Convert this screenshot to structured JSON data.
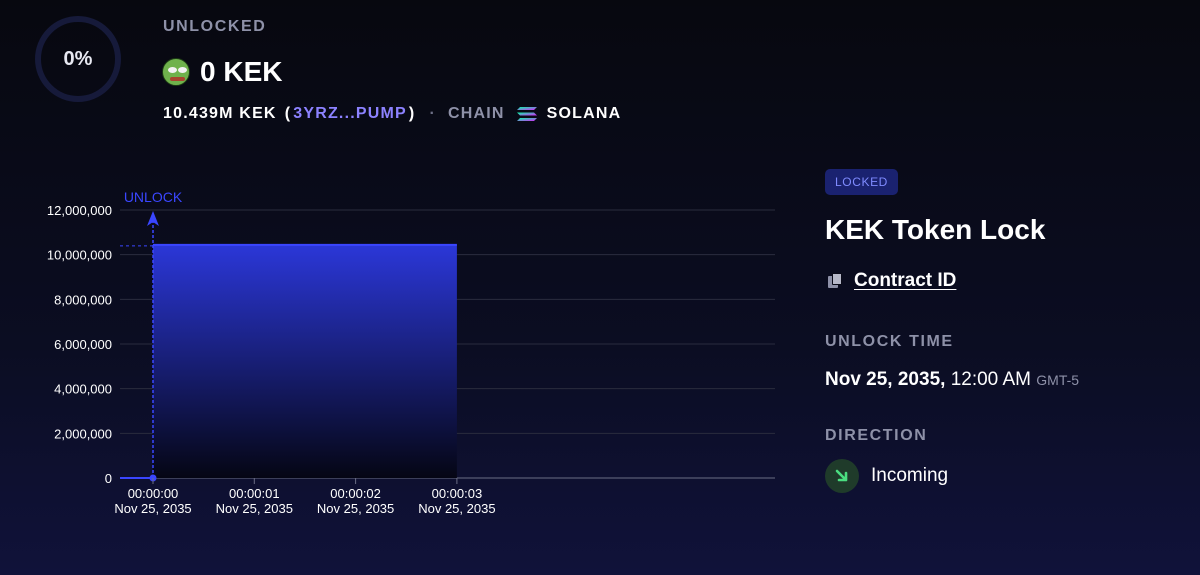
{
  "progress": {
    "label": "0%",
    "fraction": 0
  },
  "header": {
    "unlocked_label": "UNLOCKED",
    "amount": "0 KEK",
    "total": "10.439M KEK",
    "open_paren": "(",
    "address": "3YRZ...PUMP",
    "close_paren": ")",
    "separator": "·",
    "chain_label": "CHAIN",
    "chain_name": "SOLANA",
    "token_icon": "pepe-token-avatar",
    "chain_icon": "solana-icon"
  },
  "chart_data": {
    "type": "area",
    "series": [
      {
        "x": [
          "00:00:00",
          "00:00:00",
          "00:00:03"
        ],
        "values": [
          0,
          10439000,
          10439000
        ]
      }
    ],
    "annotation": "UNLOCK",
    "y_ticks": [
      "12,000,000",
      "10,000,000",
      "8,000,000",
      "6,000,000",
      "4,000,000",
      "2,000,000",
      "0"
    ],
    "y_tick_values": [
      12000000,
      10000000,
      8000000,
      6000000,
      4000000,
      2000000,
      0
    ],
    "x_ticks": [
      {
        "time": "00:00:00",
        "date": "Nov 25, 2035"
      },
      {
        "time": "00:00:01",
        "date": "Nov 25, 2035"
      },
      {
        "time": "00:00:02",
        "date": "Nov 25, 2035"
      },
      {
        "time": "00:00:03",
        "date": "Nov 25, 2035"
      }
    ],
    "ylim": [
      0,
      12000000
    ],
    "grid": true,
    "colors": {
      "fill_top": "#2b37d8",
      "fill_bottom": "#050614",
      "line": "#3a46ff",
      "grid": "#2a2c3e"
    }
  },
  "panel": {
    "badge": "LOCKED",
    "title": "KEK Token Lock",
    "contract_link": "Contract ID",
    "unlock_time_label": "UNLOCK TIME",
    "unlock_date": "Nov 25, 2035,",
    "unlock_clock": "12:00 AM",
    "unlock_tz": "GMT-5",
    "direction_label": "DIRECTION",
    "direction": "Incoming"
  },
  "colors": {
    "accent": "#8c82ff",
    "badge_bg": "#1a2270",
    "incoming": "#4ade80"
  }
}
